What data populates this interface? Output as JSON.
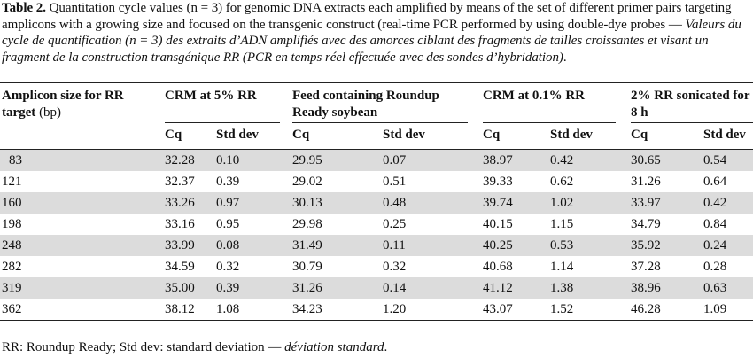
{
  "caption": {
    "label": "Table 2.",
    "english": " Quantitation cycle values (n = 3) for genomic DNA extracts each amplified by means of the set of different primer pairs targeting amplicons with a growing size and focused on the transgenic construct (real-time PCR performed by using double-dye probes — ",
    "french": "Valeurs du cycle de quantification (n = 3) des extraits d’ADN amplifiés avec des amorces ciblant des fragments de tailles croissantes et visant un fragment de la construction transgénique RR (PCR en temps réel effectuée avec des sondes d’hybridation)",
    "end": "."
  },
  "table": {
    "col0": {
      "title": "Amplicon size for RR target",
      "unit": " (bp)"
    },
    "groups": [
      {
        "title": "CRM at 5% RR"
      },
      {
        "title": "Feed containing Roundup Ready soybean"
      },
      {
        "title": "CRM at 0.1% RR"
      },
      {
        "title": "2% RR sonicated for 8 h"
      }
    ],
    "sub": {
      "cq": "Cq",
      "sd": "Std dev"
    },
    "rows": [
      [
        "83",
        "32.28",
        "0.10",
        "29.95",
        "0.07",
        "38.97",
        "0.42",
        "30.65",
        "0.54"
      ],
      [
        "121",
        "32.37",
        "0.39",
        "29.02",
        "0.51",
        "39.33",
        "0.62",
        "31.26",
        "0.64"
      ],
      [
        "160",
        "33.26",
        "0.97",
        "30.13",
        "0.48",
        "39.74",
        "1.02",
        "33.97",
        "0.42"
      ],
      [
        "198",
        "33.16",
        "0.95",
        "29.98",
        "0.25",
        "40.15",
        "1.15",
        "34.79",
        "0.84"
      ],
      [
        "248",
        "33.99",
        "0.08",
        "31.49",
        "0.11",
        "40.25",
        "0.53",
        "35.92",
        "0.24"
      ],
      [
        "282",
        "34.59",
        "0.32",
        "30.79",
        "0.32",
        "40.68",
        "1.14",
        "37.28",
        "0.28"
      ],
      [
        "319",
        "35.00",
        "0.39",
        "31.26",
        "0.14",
        "41.12",
        "1.38",
        "38.96",
        "0.63"
      ],
      [
        "362",
        "38.12",
        "1.08",
        "34.23",
        "1.20",
        "43.07",
        "1.52",
        "46.28",
        "1.09"
      ]
    ]
  },
  "footnote": {
    "english": "RR: Roundup Ready; Std dev: standard deviation — ",
    "french": "déviation standard",
    "end": "."
  },
  "colors": {
    "shade": "#dcdcdc",
    "rule": "#222222"
  }
}
